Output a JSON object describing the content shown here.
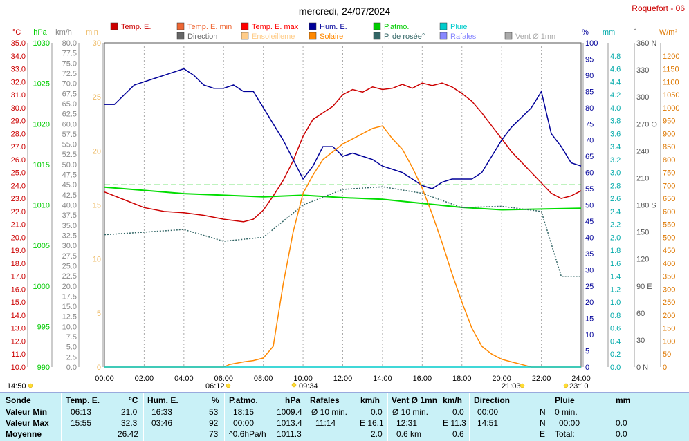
{
  "header": {
    "title": "mercredi, 24/07/2024",
    "station": "Roquefort - 06"
  },
  "legend": [
    {
      "label": "Temp. E.",
      "color": "#cc0000"
    },
    {
      "label": "Temp. E. min",
      "color": "#ee6633"
    },
    {
      "label": "Temp. E. max",
      "color": "#ff0000"
    },
    {
      "label": "Hum. E.",
      "color": "#000099"
    },
    {
      "label": "P.atmo.",
      "color": "#00cc00"
    },
    {
      "label": "Pluie",
      "color": "#00cccc"
    },
    {
      "label": "Vent Ø 1mn",
      "color": "#aaaaaa"
    },
    {
      "label": "Direction",
      "color": "#666666"
    },
    {
      "label": "Ensoleilleme",
      "color": "#ffcc88"
    },
    {
      "label": "Solaire",
      "color": "#ff8800"
    },
    {
      "label": "P. de rosée°",
      "color": "#336666"
    },
    {
      "label": "Rafales",
      "color": "#8888ff"
    }
  ],
  "axis_units": {
    "temp": "°C",
    "pressure": "hPa",
    "wind": "km/h",
    "sun": "min",
    "hum": "%",
    "rain": "mm",
    "dir": "°",
    "solar": "W/m²"
  },
  "axis_ticks": {
    "temp": [
      "35.0",
      "34.0",
      "33.0",
      "32.0",
      "31.0",
      "30.0",
      "29.0",
      "28.0",
      "27.0",
      "26.0",
      "25.0",
      "24.0",
      "23.0",
      "22.0",
      "21.0",
      "20.0",
      "19.0",
      "18.0",
      "17.0",
      "16.0",
      "15.0",
      "14.0",
      "13.0",
      "12.0",
      "11.0",
      "10.0"
    ],
    "pressure": [
      "1030",
      "1025",
      "1020",
      "1015",
      "1010",
      "1005",
      "1000",
      "995",
      "990"
    ],
    "wind": [
      "80.0",
      "77.5",
      "75.0",
      "72.5",
      "70.0",
      "67.5",
      "65.0",
      "62.5",
      "60.0",
      "57.5",
      "55.0",
      "52.5",
      "50.0",
      "47.5",
      "45.0",
      "42.5",
      "40.0",
      "37.5",
      "35.0",
      "32.5",
      "30.0",
      "27.5",
      "25.0",
      "22.5",
      "20.0",
      "17.5",
      "15.0",
      "12.5",
      "10.0",
      "7.5",
      "5.0",
      "2.5",
      "0.0"
    ],
    "sun": [
      "30",
      "25",
      "20",
      "15",
      "10",
      "5",
      "0"
    ],
    "hum": [
      "100",
      "95",
      "90",
      "85",
      "80",
      "75",
      "70",
      "65",
      "60",
      "55",
      "50",
      "45",
      "40",
      "35",
      "30",
      "25",
      "20",
      "15",
      "10",
      "5",
      "0"
    ],
    "rain": [
      "4.8",
      "4.6",
      "4.4",
      "4.2",
      "4.0",
      "3.8",
      "3.6",
      "3.4",
      "3.2",
      "3.0",
      "2.8",
      "2.6",
      "2.4",
      "2.2",
      "2.0",
      "1.8",
      "1.6",
      "1.4",
      "1.2",
      "1.0",
      "0.8",
      "0.6",
      "0.4",
      "0.2",
      "0.0"
    ],
    "dir": [
      "360 N",
      "330",
      "300",
      "270 O",
      "240",
      "210",
      "180 S",
      "150",
      "120",
      "90 E",
      "60",
      "30",
      "0 N"
    ],
    "solar": [
      "1200",
      "1150",
      "1100",
      "1050",
      "1000",
      "950",
      "900",
      "850",
      "800",
      "750",
      "700",
      "650",
      "600",
      "550",
      "500",
      "450",
      "400",
      "350",
      "300",
      "250",
      "200",
      "150",
      "100",
      "50",
      "0"
    ],
    "time": [
      "00:00",
      "02:00",
      "04:00",
      "06:00",
      "08:00",
      "10:00",
      "12:00",
      "14:00",
      "16:00",
      "18:00",
      "20:00",
      "22:00",
      "24:00"
    ]
  },
  "sun_events": {
    "day_length": "14:50",
    "sunrise": "06:12",
    "solar_noon": "09:34",
    "sunset": "21:03",
    "moon": "23:10"
  },
  "chart_data": {
    "type": "line",
    "title": "mercredi, 24/07/2024",
    "x_unit": "hours",
    "xlim": [
      0,
      24
    ],
    "series": [
      {
        "name": "Temp. E.",
        "unit": "°C",
        "axis": "temp",
        "color": "#cc0000",
        "x": [
          0,
          1,
          2,
          3,
          4,
          5,
          6,
          7,
          7.5,
          8,
          8.5,
          9,
          9.5,
          10,
          10.5,
          11,
          11.5,
          12,
          12.5,
          13,
          13.5,
          14,
          14.5,
          15,
          15.5,
          16,
          16.5,
          17,
          17.5,
          18,
          18.5,
          19,
          19.5,
          20,
          20.5,
          21,
          21.5,
          22,
          22.5,
          23,
          23.5,
          24
        ],
        "y": [
          23.5,
          22.9,
          22.3,
          22.0,
          21.9,
          21.7,
          21.4,
          21.2,
          21.4,
          22.1,
          23.2,
          24.4,
          25.9,
          27.8,
          29.1,
          29.6,
          30.1,
          31.0,
          31.4,
          31.2,
          31.6,
          31.4,
          31.5,
          31.8,
          31.5,
          31.9,
          31.7,
          31.9,
          31.6,
          31.1,
          30.5,
          29.6,
          28.6,
          27.6,
          26.6,
          25.8,
          25.0,
          24.2,
          23.4,
          23.0,
          23.2,
          23.6
        ]
      },
      {
        "name": "Hum. E.",
        "unit": "%",
        "axis": "hum",
        "color": "#000099",
        "x": [
          0,
          0.5,
          1,
          1.5,
          2,
          2.5,
          3,
          3.5,
          4,
          4.5,
          5,
          5.5,
          6,
          6.5,
          7,
          7.5,
          8,
          8.5,
          9,
          9.5,
          10,
          10.5,
          11,
          11.5,
          12,
          12.5,
          13,
          13.5,
          14,
          14.5,
          15,
          15.5,
          16,
          16.5,
          17,
          17.5,
          18,
          18.5,
          19,
          19.5,
          20,
          20.5,
          21,
          21.5,
          22,
          22.5,
          23,
          23.5,
          24
        ],
        "y": [
          81,
          81,
          84,
          87,
          88,
          89,
          90,
          91,
          92,
          90,
          87,
          86,
          86,
          87,
          85,
          85,
          80,
          75,
          70,
          64,
          58,
          62,
          68,
          68,
          65,
          66,
          65,
          64,
          62,
          61,
          60,
          58,
          56,
          55,
          57,
          58,
          58,
          58,
          60,
          65,
          70,
          74,
          77,
          80,
          85,
          72,
          68,
          63,
          62
        ]
      },
      {
        "name": "P.atmo.",
        "unit": "hPa",
        "axis": "pressure",
        "color": "#00dd00",
        "x": [
          0,
          2,
          4,
          6,
          8,
          10,
          12,
          14,
          16,
          18,
          20,
          22,
          24
        ],
        "y": [
          1012.2,
          1011.8,
          1011.4,
          1011.2,
          1011.0,
          1011.2,
          1010.9,
          1010.7,
          1010.2,
          1009.7,
          1009.4,
          1009.5,
          1009.6
        ]
      },
      {
        "name": "Solaire",
        "unit": "W/m²",
        "axis": "solar",
        "color": "#ff8800",
        "x": [
          0,
          6,
          6.3,
          7,
          7.5,
          8,
          8.5,
          9,
          9.5,
          10,
          10.5,
          11,
          11.5,
          12,
          12.5,
          13,
          13.5,
          14,
          14.5,
          15,
          15.5,
          16,
          16.5,
          17,
          17.5,
          18,
          18.5,
          19,
          19.5,
          20,
          20.5,
          21,
          21.5,
          24
        ],
        "y": [
          0,
          0,
          10,
          20,
          25,
          35,
          80,
          320,
          520,
          670,
          740,
          800,
          830,
          860,
          880,
          900,
          920,
          930,
          880,
          840,
          770,
          690,
          590,
          480,
          360,
          250,
          150,
          80,
          50,
          30,
          20,
          10,
          0,
          0
        ]
      },
      {
        "name": "P. de rosée°",
        "unit": "°C",
        "axis": "temp",
        "color": "#336666",
        "x": [
          0,
          2,
          4,
          6,
          8,
          10,
          12,
          14,
          16,
          18,
          20,
          22,
          23,
          24
        ],
        "y": [
          20.2,
          20.4,
          20.6,
          19.7,
          20.0,
          22.5,
          23.7,
          23.9,
          23.4,
          22.3,
          22.4,
          22.0,
          17.0,
          17.0
        ]
      },
      {
        "name": "Pluie",
        "unit": "mm",
        "axis": "rain",
        "color": "#00cccc",
        "x": [
          0,
          24
        ],
        "y": [
          0.0,
          0.0
        ]
      }
    ]
  },
  "summary": {
    "headers": {
      "col0": "Sonde",
      "col1": "Temp. E.",
      "col1_unit": "°C",
      "col2": "Hum. E.",
      "col2_unit": "%",
      "col3": "P.atmo.",
      "col3_unit": "hPa",
      "col4": "Rafales",
      "col4_unit": "km/h",
      "col5": "Vent Ø 1mn",
      "col5_unit": "km/h",
      "col6": "Direction",
      "col7": "Pluie",
      "col7_unit": "mm"
    },
    "rows": [
      {
        "label": "Valeur Min",
        "c1a": "06:13",
        "c1b": "21.0",
        "c2a": "16:33",
        "c2b": "53",
        "c3a": "18:15",
        "c3b": "1009.4",
        "c4a": "Ø 10 min.",
        "c4b": "0.0",
        "c5a": "Ø 10 min.",
        "c5b": "0.0",
        "c6a": "00:00",
        "c6b": "N",
        "c7a": "0 min.",
        "c7b": ""
      },
      {
        "label": "Valeur Max",
        "c1a": "15:55",
        "c1b": "32.3",
        "c2a": "03:46",
        "c2b": "92",
        "c3a": "00:00",
        "c3b": "1013.4",
        "c4a": "11:14",
        "c4b": "E 16.1",
        "c5a": "12:31",
        "c5b": "E 11.3",
        "c6a": "14:51",
        "c6b": "N",
        "c7a": "00:00",
        "c7b": "0.0"
      },
      {
        "label": "Moyenne",
        "c1a": "",
        "c1b": "26.42",
        "c2a": "",
        "c2b": "73",
        "c3a": "^0.6hPa/h",
        "c3b": "1011.3",
        "c4a": "",
        "c4b": "2.0",
        "c5a": "0.6 km",
        "c5b": "0.6",
        "c6a": "",
        "c6b": "E",
        "c7a": "Total:",
        "c7b": "0.0"
      }
    ]
  }
}
